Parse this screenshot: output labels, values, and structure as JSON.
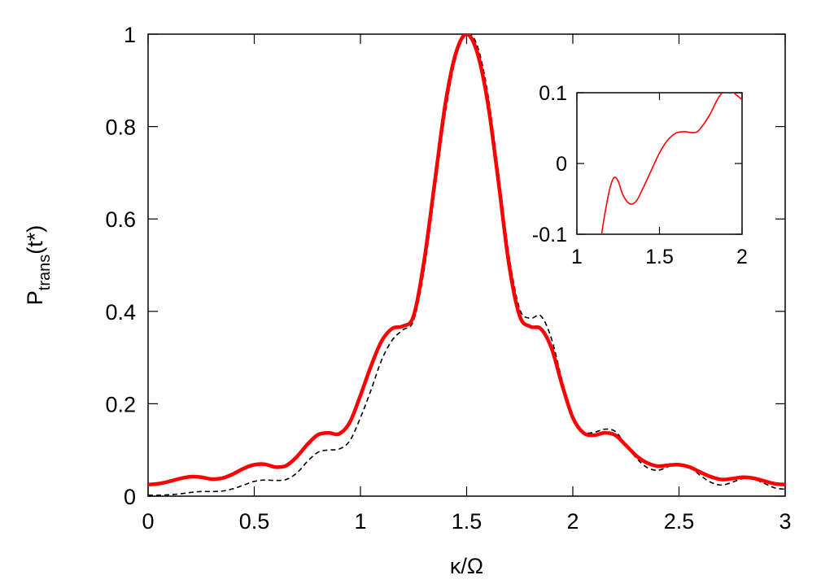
{
  "chart_data": [
    {
      "type": "line",
      "title": "",
      "xlabel": "κ/Ω",
      "ylabel": {
        "main": "P",
        "sub": "trans",
        "suffix": "(t*)"
      },
      "xlim": [
        0,
        3
      ],
      "ylim": [
        0,
        1
      ],
      "x_ticks": [
        0,
        0.5,
        1,
        1.5,
        2,
        2.5,
        3
      ],
      "x_tick_labels": [
        "0",
        "0.5",
        "1",
        "1.5",
        "2",
        "2.5",
        "3"
      ],
      "y_ticks": [
        0,
        0.2,
        0.4,
        0.6,
        0.8,
        1
      ],
      "y_tick_labels": [
        "0",
        "0.2",
        "0.4",
        "0.6",
        "0.8",
        "1"
      ],
      "grid": false,
      "legend": "none",
      "series": [
        {
          "color": "#ff0000",
          "style": "solid-thick",
          "points": [
            [
              0.0,
              0.025
            ],
            [
              0.05,
              0.027
            ],
            [
              0.1,
              0.032
            ],
            [
              0.15,
              0.038
            ],
            [
              0.2,
              0.042
            ],
            [
              0.25,
              0.041
            ],
            [
              0.3,
              0.037
            ],
            [
              0.35,
              0.039
            ],
            [
              0.4,
              0.048
            ],
            [
              0.45,
              0.06
            ],
            [
              0.5,
              0.068
            ],
            [
              0.55,
              0.069
            ],
            [
              0.6,
              0.063
            ],
            [
              0.65,
              0.066
            ],
            [
              0.7,
              0.085
            ],
            [
              0.75,
              0.112
            ],
            [
              0.8,
              0.133
            ],
            [
              0.85,
              0.137
            ],
            [
              0.9,
              0.135
            ],
            [
              0.95,
              0.16
            ],
            [
              1.0,
              0.218
            ],
            [
              1.05,
              0.282
            ],
            [
              1.1,
              0.336
            ],
            [
              1.15,
              0.363
            ],
            [
              1.2,
              0.368
            ],
            [
              1.25,
              0.39
            ],
            [
              1.3,
              0.51
            ],
            [
              1.35,
              0.68
            ],
            [
              1.4,
              0.85
            ],
            [
              1.45,
              0.96
            ],
            [
              1.5,
              1.0
            ],
            [
              1.55,
              0.96
            ],
            [
              1.6,
              0.85
            ],
            [
              1.65,
              0.68
            ],
            [
              1.7,
              0.5
            ],
            [
              1.75,
              0.39
            ],
            [
              1.8,
              0.367
            ],
            [
              1.85,
              0.362
            ],
            [
              1.9,
              0.32
            ],
            [
              1.95,
              0.24
            ],
            [
              2.0,
              0.17
            ],
            [
              2.05,
              0.137
            ],
            [
              2.1,
              0.132
            ],
            [
              2.15,
              0.137
            ],
            [
              2.2,
              0.132
            ],
            [
              2.25,
              0.11
            ],
            [
              2.3,
              0.087
            ],
            [
              2.35,
              0.072
            ],
            [
              2.4,
              0.065
            ],
            [
              2.45,
              0.067
            ],
            [
              2.5,
              0.068
            ],
            [
              2.55,
              0.063
            ],
            [
              2.6,
              0.052
            ],
            [
              2.65,
              0.042
            ],
            [
              2.7,
              0.036
            ],
            [
              2.75,
              0.038
            ],
            [
              2.8,
              0.041
            ],
            [
              2.85,
              0.039
            ],
            [
              2.9,
              0.033
            ],
            [
              2.95,
              0.027
            ],
            [
              3.0,
              0.025
            ]
          ]
        },
        {
          "color": "#000000",
          "style": "dashed",
          "points": [
            [
              0.0,
              0.002
            ],
            [
              0.05,
              0.002
            ],
            [
              0.1,
              0.003
            ],
            [
              0.15,
              0.005
            ],
            [
              0.2,
              0.008
            ],
            [
              0.25,
              0.01
            ],
            [
              0.3,
              0.01
            ],
            [
              0.35,
              0.011
            ],
            [
              0.4,
              0.016
            ],
            [
              0.45,
              0.024
            ],
            [
              0.5,
              0.032
            ],
            [
              0.55,
              0.035
            ],
            [
              0.6,
              0.034
            ],
            [
              0.65,
              0.036
            ],
            [
              0.7,
              0.05
            ],
            [
              0.75,
              0.075
            ],
            [
              0.8,
              0.095
            ],
            [
              0.85,
              0.1
            ],
            [
              0.9,
              0.102
            ],
            [
              0.95,
              0.12
            ],
            [
              1.0,
              0.17
            ],
            [
              1.05,
              0.23
            ],
            [
              1.1,
              0.295
            ],
            [
              1.15,
              0.338
            ],
            [
              1.2,
              0.36
            ],
            [
              1.25,
              0.38
            ],
            [
              1.3,
              0.49
            ],
            [
              1.35,
              0.66
            ],
            [
              1.4,
              0.83
            ],
            [
              1.45,
              0.95
            ],
            [
              1.5,
              1.0
            ],
            [
              1.55,
              0.975
            ],
            [
              1.6,
              0.87
            ],
            [
              1.65,
              0.7
            ],
            [
              1.7,
              0.52
            ],
            [
              1.75,
              0.405
            ],
            [
              1.8,
              0.385
            ],
            [
              1.85,
              0.39
            ],
            [
              1.9,
              0.34
            ],
            [
              1.95,
              0.25
            ],
            [
              2.0,
              0.175
            ],
            [
              2.05,
              0.14
            ],
            [
              2.1,
              0.138
            ],
            [
              2.15,
              0.145
            ],
            [
              2.2,
              0.14
            ],
            [
              2.25,
              0.11
            ],
            [
              2.3,
              0.082
            ],
            [
              2.35,
              0.062
            ],
            [
              2.4,
              0.056
            ],
            [
              2.45,
              0.064
            ],
            [
              2.5,
              0.07
            ],
            [
              2.55,
              0.063
            ],
            [
              2.6,
              0.045
            ],
            [
              2.65,
              0.03
            ],
            [
              2.7,
              0.024
            ],
            [
              2.75,
              0.03
            ],
            [
              2.8,
              0.038
            ],
            [
              2.85,
              0.037
            ],
            [
              2.9,
              0.028
            ],
            [
              2.95,
              0.018
            ],
            [
              3.0,
              0.015
            ]
          ]
        }
      ]
    },
    {
      "type": "line",
      "title": "",
      "xlabel": "",
      "ylabel": "",
      "xlim": [
        1,
        2
      ],
      "ylim": [
        -0.1,
        0.1
      ],
      "x_ticks": [
        1,
        1.5,
        2
      ],
      "x_tick_labels": [
        "1",
        "1.5",
        "2"
      ],
      "y_ticks": [
        -0.1,
        0,
        0.1
      ],
      "y_tick_labels": [
        "-0.1",
        "0",
        "0.1"
      ],
      "grid": false,
      "legend": "none",
      "series": [
        {
          "color": "#ff0000",
          "style": "solid-thin",
          "points": [
            [
              1.15,
              -0.1
            ],
            [
              1.17,
              -0.07
            ],
            [
              1.2,
              -0.035
            ],
            [
              1.225,
              -0.02
            ],
            [
              1.25,
              -0.025
            ],
            [
              1.28,
              -0.045
            ],
            [
              1.32,
              -0.057
            ],
            [
              1.36,
              -0.053
            ],
            [
              1.4,
              -0.035
            ],
            [
              1.45,
              -0.01
            ],
            [
              1.5,
              0.015
            ],
            [
              1.55,
              0.033
            ],
            [
              1.6,
              0.043
            ],
            [
              1.65,
              0.045
            ],
            [
              1.68,
              0.044
            ],
            [
              1.72,
              0.044
            ],
            [
              1.75,
              0.05
            ],
            [
              1.8,
              0.067
            ],
            [
              1.85,
              0.09
            ],
            [
              1.88,
              0.1
            ],
            [
              1.92,
              0.104
            ],
            [
              1.97,
              0.096
            ],
            [
              2.0,
              0.09
            ]
          ]
        }
      ]
    }
  ]
}
